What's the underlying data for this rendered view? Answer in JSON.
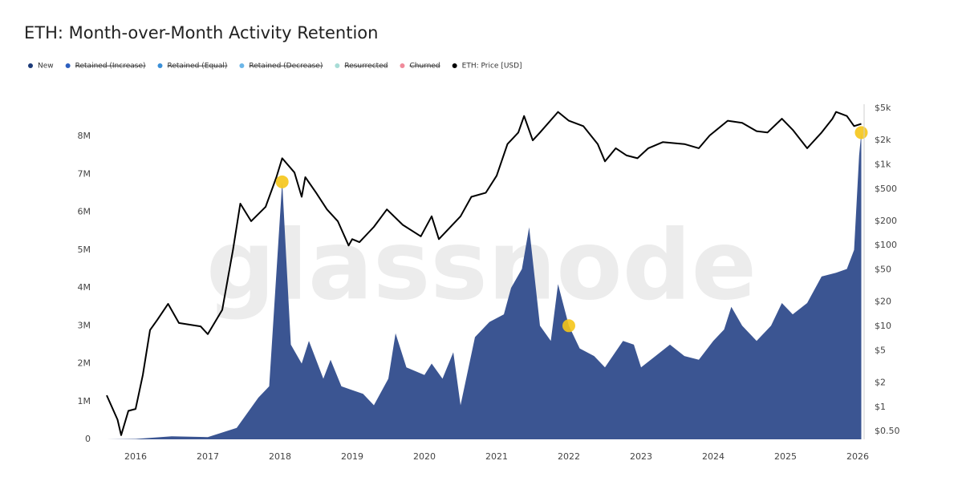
{
  "chart_data": {
    "type": "area",
    "title": "ETH: Month-over-Month Activity Retention",
    "watermark": "glassnode",
    "xlim": [
      2015.567,
      2026.067
    ],
    "xticks": [
      2016,
      2017,
      2018,
      2019,
      2020,
      2021,
      2022,
      2023,
      2024,
      2025,
      2026
    ],
    "ylim": [
      0,
      8850000
    ],
    "yticks": [
      {
        "value": 0,
        "label": "0"
      },
      {
        "value": 1000000,
        "label": "1M"
      },
      {
        "value": 2000000,
        "label": "2M"
      },
      {
        "value": 3000000,
        "label": "3M"
      },
      {
        "value": 4000000,
        "label": "4M"
      },
      {
        "value": 5000000,
        "label": "5M"
      },
      {
        "value": 6000000,
        "label": "6M"
      },
      {
        "value": 7000000,
        "label": "7M"
      },
      {
        "value": 8000000,
        "label": "8M"
      }
    ],
    "y2lim": [
      0.4,
      5600
    ],
    "y2log": true,
    "y2ticks": [
      {
        "value": 0.5,
        "label": "$0.50"
      },
      {
        "value": 1,
        "label": "$1"
      },
      {
        "value": 2,
        "label": "$2"
      },
      {
        "value": 5,
        "label": "$5"
      },
      {
        "value": 10,
        "label": "$10"
      },
      {
        "value": 20,
        "label": "$20"
      },
      {
        "value": 50,
        "label": "$50"
      },
      {
        "value": 100,
        "label": "$100"
      },
      {
        "value": 200,
        "label": "$200"
      },
      {
        "value": 500,
        "label": "$500"
      },
      {
        "value": 1000,
        "label": "$1k"
      },
      {
        "value": 2000,
        "label": "$2k"
      },
      {
        "value": 5000,
        "label": "$5k"
      }
    ],
    "grid": false,
    "series": [
      {
        "name": "New",
        "color": "#1c3a78",
        "fill": "#3b5592",
        "highlight_color": "#f5c518",
        "highlights": [
          7,
          34,
          59
        ],
        "x": [
          2015.6,
          2016.0,
          2016.5,
          2017.0,
          2017.4,
          2017.7,
          2017.85,
          2018.03,
          2018.15,
          2018.3,
          2018.4,
          2018.6,
          2018.7,
          2018.85,
          2019.0,
          2019.15,
          2019.3,
          2019.5,
          2019.6,
          2019.75,
          2020.0,
          2020.1,
          2020.25,
          2020.4,
          2020.5,
          2020.7,
          2020.9,
          2021.1,
          2021.2,
          2021.35,
          2021.45,
          2021.6,
          2021.75,
          2021.85,
          2022.0,
          2022.15,
          2022.35,
          2022.5,
          2022.75,
          2022.9,
          2023.0,
          2023.2,
          2023.4,
          2023.6,
          2023.8,
          2024.0,
          2024.15,
          2024.25,
          2024.4,
          2024.6,
          2024.8,
          2024.95,
          2025.1,
          2025.3,
          2025.5,
          2025.7,
          2025.85,
          2025.95,
          2026.02,
          2026.05
        ],
        "values": [
          0,
          10000,
          80000,
          60000,
          300000,
          1100000,
          1400000,
          6800000,
          2500000,
          2000000,
          2600000,
          1600000,
          2100000,
          1400000,
          1300000,
          1200000,
          900000,
          1600000,
          2800000,
          1900000,
          1700000,
          2000000,
          1600000,
          2300000,
          900000,
          2700000,
          3100000,
          3300000,
          4000000,
          4500000,
          5600000,
          3000000,
          2600000,
          4100000,
          3000000,
          2400000,
          2200000,
          1900000,
          2600000,
          2500000,
          1900000,
          2200000,
          2500000,
          2200000,
          2100000,
          2600000,
          2900000,
          3500000,
          3000000,
          2600000,
          3000000,
          3600000,
          3300000,
          3600000,
          4300000,
          4400000,
          4500000,
          5000000,
          7500000,
          8100000
        ]
      },
      {
        "name": "Retained (Increase)",
        "color": "#2c5fbf",
        "hidden": true
      },
      {
        "name": "Retained (Equal)",
        "color": "#3a8fd8",
        "hidden": true
      },
      {
        "name": "Retained (Decrease)",
        "color": "#6cb6e8",
        "hidden": true
      },
      {
        "name": "Resurrected",
        "color": "#a7dcd6",
        "hidden": true
      },
      {
        "name": "Churned",
        "color": "#f08a9a",
        "hidden": true
      },
      {
        "name": "ETH: Price [USD]",
        "color": "#000000",
        "axis": "y2",
        "kind": "line",
        "x": [
          2015.6,
          2015.75,
          2015.8,
          2015.9,
          2016.0,
          2016.1,
          2016.2,
          2016.3,
          2016.45,
          2016.6,
          2016.9,
          2017.0,
          2017.2,
          2017.35,
          2017.45,
          2017.6,
          2017.8,
          2017.95,
          2018.03,
          2018.2,
          2018.3,
          2018.35,
          2018.5,
          2018.65,
          2018.8,
          2018.95,
          2019.0,
          2019.1,
          2019.3,
          2019.48,
          2019.7,
          2019.95,
          2020.1,
          2020.2,
          2020.5,
          2020.65,
          2020.85,
          2021.0,
          2021.15,
          2021.3,
          2021.38,
          2021.5,
          2021.6,
          2021.85,
          2022.0,
          2022.2,
          2022.4,
          2022.5,
          2022.65,
          2022.8,
          2022.95,
          2023.1,
          2023.3,
          2023.6,
          2023.8,
          2023.95,
          2024.2,
          2024.4,
          2024.6,
          2024.75,
          2024.95,
          2025.1,
          2025.3,
          2025.5,
          2025.65,
          2025.7,
          2025.85,
          2025.95,
          2026.05
        ],
        "values": [
          1.4,
          0.7,
          0.45,
          0.9,
          0.95,
          2.5,
          9,
          12,
          19,
          11,
          10,
          8,
          16,
          90,
          330,
          200,
          300,
          700,
          1200,
          800,
          400,
          700,
          450,
          280,
          200,
          100,
          120,
          110,
          170,
          280,
          180,
          130,
          230,
          120,
          230,
          400,
          450,
          730,
          1800,
          2500,
          4000,
          2000,
          2500,
          4500,
          3500,
          3000,
          1800,
          1100,
          1600,
          1300,
          1200,
          1600,
          1900,
          1800,
          1600,
          2300,
          3500,
          3300,
          2600,
          2500,
          3700,
          2700,
          1600,
          2500,
          3700,
          4500,
          4000,
          3000,
          3200
        ]
      }
    ]
  }
}
